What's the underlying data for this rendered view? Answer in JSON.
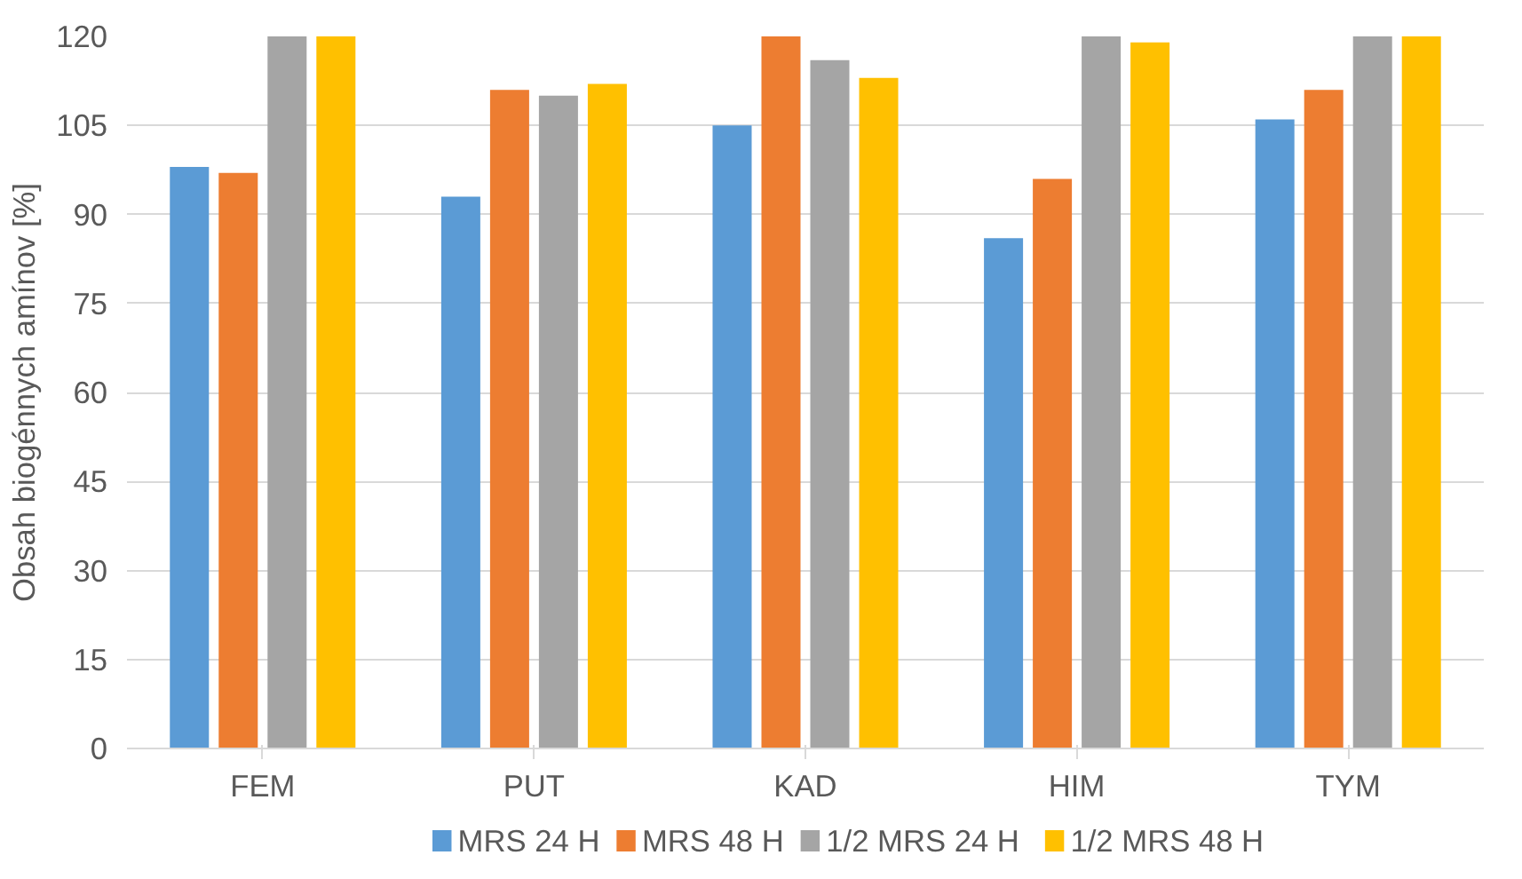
{
  "chart_data": {
    "type": "bar",
    "ylabel": "Obsah biogénnych amínov [%]",
    "categories": [
      "FEM",
      "PUT",
      "KAD",
      "HIM",
      "TYM"
    ],
    "series": [
      {
        "name": "MRS 24 H",
        "color": "#5b9bd5",
        "values": [
          98,
          93,
          105,
          86,
          106
        ]
      },
      {
        "name": "MRS 48 H",
        "color": "#ed7d31",
        "values": [
          97,
          111,
          120,
          96,
          111
        ]
      },
      {
        "name": "1/2 MRS 24 H",
        "color": "#a5a5a5",
        "values": [
          120,
          110,
          116,
          120,
          120
        ]
      },
      {
        "name": "1/2 MRS 48 H",
        "color": "#ffc000",
        "values": [
          120,
          112,
          113,
          119,
          120
        ]
      }
    ],
    "ylim": [
      0,
      120
    ],
    "yticks": [
      0,
      15,
      30,
      45,
      60,
      75,
      90,
      105,
      120
    ],
    "grid": "y",
    "legend": "bottom"
  }
}
